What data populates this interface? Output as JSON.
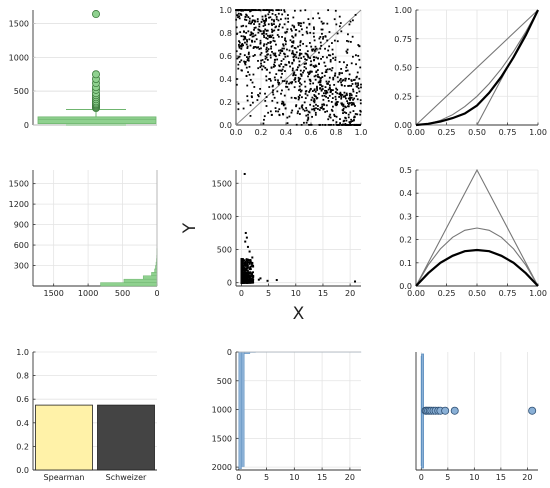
{
  "chart_data": [
    {
      "id": "p1",
      "type": "boxplot",
      "grid": true,
      "ylim": [
        0,
        1700
      ],
      "yticks": [
        0,
        500,
        1000,
        1500
      ],
      "box": {
        "q1": 20,
        "median": 85,
        "q3": 120,
        "whisker_low": 0,
        "whisker_high": 230
      },
      "outliers": [
        250,
        265,
        280,
        295,
        310,
        330,
        350,
        380,
        410,
        440,
        470,
        520,
        560,
        620,
        680,
        750,
        1640
      ],
      "color": "#8fd18f"
    },
    {
      "id": "p2",
      "type": "scatter",
      "grid": true,
      "xlim": [
        0,
        1
      ],
      "ylim": [
        0,
        1
      ],
      "xticks": [
        "0.0",
        "0.2",
        "0.4",
        "0.6",
        "0.8",
        "1.0"
      ],
      "yticks": [
        "0.0",
        "0.2",
        "0.4",
        "0.6",
        "0.8",
        "1.0"
      ],
      "n_points": 1100,
      "dependence": "negative",
      "color": "#000000"
    },
    {
      "id": "p3",
      "type": "line",
      "grid": true,
      "xlim": [
        0,
        1
      ],
      "ylim": [
        0,
        1
      ],
      "xticks": [
        "0.00",
        "0.25",
        "0.50",
        "0.75",
        "1.00"
      ],
      "yticks": [
        "0.00",
        "0.25",
        "0.50",
        "0.75",
        "1.00"
      ],
      "series": [
        {
          "values": [
            [
              0,
              0
            ],
            [
              1,
              1
            ]
          ],
          "color": "#777777"
        },
        {
          "values": [
            [
              0,
              0
            ],
            [
              0.5,
              0
            ],
            [
              1,
              1
            ]
          ],
          "color": "#777777"
        },
        {
          "values": [
            [
              0,
              0
            ],
            [
              0.1,
              0.01
            ],
            [
              0.2,
              0.04
            ],
            [
              0.3,
              0.09
            ],
            [
              0.4,
              0.16
            ],
            [
              0.5,
              0.25
            ],
            [
              0.6,
              0.36
            ],
            [
              0.7,
              0.49
            ],
            [
              0.8,
              0.64
            ],
            [
              0.9,
              0.81
            ],
            [
              1,
              1
            ]
          ],
          "color": "#777777"
        },
        {
          "values": [
            [
              0,
              0
            ],
            [
              0.1,
              0.01
            ],
            [
              0.2,
              0.03
            ],
            [
              0.3,
              0.06
            ],
            [
              0.4,
              0.1
            ],
            [
              0.5,
              0.17
            ],
            [
              0.6,
              0.28
            ],
            [
              0.7,
              0.42
            ],
            [
              0.8,
              0.59
            ],
            [
              0.9,
              0.78
            ],
            [
              1,
              1
            ]
          ],
          "color": "#000000"
        }
      ]
    },
    {
      "id": "p4",
      "type": "histogram-horizontal",
      "grid": true,
      "xlim": [
        1800,
        0
      ],
      "ylim": [
        0,
        1700
      ],
      "xticks": [
        1500,
        1000,
        500,
        0
      ],
      "yticks": [
        300,
        600,
        900,
        1200,
        1500
      ],
      "bins": [
        [
          0,
          50,
          820
        ],
        [
          50,
          100,
          480
        ],
        [
          100,
          150,
          200
        ],
        [
          150,
          200,
          80
        ],
        [
          200,
          250,
          35
        ],
        [
          250,
          300,
          22
        ],
        [
          300,
          350,
          14
        ],
        [
          350,
          400,
          8
        ],
        [
          400,
          450,
          5
        ],
        [
          450,
          500,
          3
        ],
        [
          500,
          550,
          2
        ]
      ],
      "color": "#8fd18f"
    },
    {
      "id": "p5",
      "type": "scatter",
      "grid": true,
      "xlim": [
        -1,
        22
      ],
      "ylim": [
        -50,
        1700
      ],
      "xticks": [
        0,
        5,
        10,
        15,
        20
      ],
      "yticks": [
        0,
        500,
        1000,
        1500
      ],
      "xlabel": "X",
      "ylabel": "Y",
      "n_points": 900,
      "extra_points": [
        [
          0.6,
          1640
        ],
        [
          0.8,
          750
        ],
        [
          1.0,
          680
        ],
        [
          0.7,
          620
        ],
        [
          1.2,
          540
        ],
        [
          1.5,
          470
        ],
        [
          2.0,
          380
        ],
        [
          3.2,
          45
        ],
        [
          3.5,
          65
        ],
        [
          4.8,
          28
        ],
        [
          6.5,
          40
        ],
        [
          20.9,
          18
        ]
      ],
      "color": "#000000"
    },
    {
      "id": "p6",
      "type": "line",
      "grid": true,
      "xlim": [
        0,
        1
      ],
      "ylim": [
        0,
        0.5
      ],
      "xticks": [
        "0.00",
        "0.25",
        "0.50",
        "0.75",
        "1.00"
      ],
      "yticks": [
        "0.0",
        "0.1",
        "0.2",
        "0.3",
        "0.4",
        "0.5"
      ],
      "series": [
        {
          "values": [
            [
              0,
              0
            ],
            [
              0.5,
              0.5
            ],
            [
              1,
              0
            ]
          ],
          "color": "#777777"
        },
        {
          "values": [
            [
              0,
              0
            ],
            [
              0.1,
              0.09
            ],
            [
              0.2,
              0.16
            ],
            [
              0.3,
              0.21
            ],
            [
              0.4,
              0.24
            ],
            [
              0.5,
              0.25
            ],
            [
              0.6,
              0.24
            ],
            [
              0.7,
              0.21
            ],
            [
              0.8,
              0.16
            ],
            [
              0.9,
              0.09
            ],
            [
              1,
              0
            ]
          ],
          "color": "#777777"
        },
        {
          "values": [
            [
              0,
              0
            ],
            [
              0.1,
              0.055
            ],
            [
              0.2,
              0.1
            ],
            [
              0.3,
              0.13
            ],
            [
              0.4,
              0.15
            ],
            [
              0.5,
              0.155
            ],
            [
              0.6,
              0.15
            ],
            [
              0.7,
              0.13
            ],
            [
              0.8,
              0.1
            ],
            [
              0.9,
              0.055
            ],
            [
              1,
              0
            ]
          ],
          "color": "#000000"
        }
      ]
    },
    {
      "id": "p7",
      "type": "bar",
      "grid": true,
      "categories": [
        "Spearman",
        "Schweizer"
      ],
      "values": [
        0.55,
        0.55
      ],
      "colors": [
        "#fff2a8",
        "#444444"
      ],
      "ylim": [
        0,
        1
      ],
      "yticks": [
        "0.0",
        "0.2",
        "0.4",
        "0.6",
        "0.8",
        "1.0"
      ]
    },
    {
      "id": "p8",
      "type": "histogram",
      "grid": true,
      "xlim": [
        -0.5,
        22
      ],
      "ylim": [
        0,
        2050
      ],
      "yaxis": "inverted",
      "xticks": [
        0,
        5,
        10,
        15,
        20
      ],
      "yticks": [
        0,
        500,
        1000,
        1500,
        2000
      ],
      "bins": [
        [
          0,
          0.5,
          2030
        ],
        [
          0.5,
          1,
          1990
        ],
        [
          1,
          2,
          30
        ],
        [
          2,
          3,
          8
        ],
        [
          3,
          5,
          4
        ],
        [
          5,
          22,
          2
        ]
      ],
      "color": "#8ab0d6"
    },
    {
      "id": "p9",
      "type": "boxplot-horizontal",
      "grid": true,
      "xlim": [
        -1,
        22
      ],
      "ylim": [
        0,
        2050
      ],
      "yaxis": "inverted",
      "xticks": [
        0,
        5,
        10,
        15,
        20
      ],
      "box": {
        "q1": 0.05,
        "median": 0.15,
        "q3": 0.35,
        "whisker_low": 0,
        "whisker_high": 0.7,
        "position": 1020
      },
      "outliers": [
        0.8,
        1.0,
        1.3,
        1.6,
        1.9,
        2.3,
        2.7,
        3.2,
        3.6,
        4.5,
        6.3,
        20.9
      ],
      "color": "#8ab0d6"
    }
  ]
}
